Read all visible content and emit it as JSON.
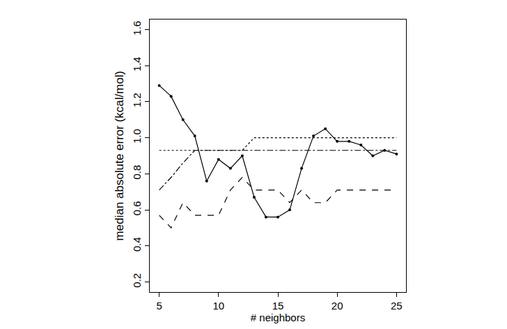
{
  "chart_data": {
    "type": "line",
    "x_label": "# neighbors",
    "y_label": "median absolute error (kcal/mol)",
    "x": [
      5,
      6,
      7,
      8,
      9,
      10,
      11,
      12,
      13,
      14,
      15,
      16,
      17,
      18,
      19,
      20,
      21,
      22,
      23,
      24,
      25
    ],
    "series": [
      {
        "color": "#000000",
        "line_style": "solid",
        "marker": "circle",
        "values": [
          1.29,
          1.23,
          1.1,
          1.01,
          0.76,
          0.88,
          0.83,
          0.9,
          0.67,
          0.56,
          0.56,
          0.6,
          0.83,
          1.01,
          1.05,
          0.98,
          0.98,
          0.96,
          0.9,
          0.93,
          0.91
        ]
      },
      {
        "color": "#000000",
        "line_style": "dot",
        "marker": "none",
        "values": [
          0.93,
          0.93,
          0.93,
          0.93,
          0.93,
          0.93,
          0.93,
          0.93,
          1.0,
          1.0,
          1.0,
          1.0,
          1.0,
          1.0,
          1.0,
          1.0,
          1.0,
          1.0,
          1.0,
          1.0,
          1.0
        ]
      },
      {
        "color": "#000000",
        "line_style": "dashdot",
        "marker": "none",
        "values": [
          0.71,
          0.78,
          0.86,
          0.93,
          0.93,
          0.93,
          0.93,
          0.93,
          0.93,
          0.93,
          0.93,
          0.93,
          0.93,
          0.93,
          0.93,
          0.93,
          0.93,
          0.93,
          0.93,
          0.93,
          0.93
        ]
      },
      {
        "color": "#000000",
        "line_style": "dash",
        "marker": "none",
        "values": [
          0.57,
          0.5,
          0.64,
          0.57,
          0.57,
          0.57,
          0.71,
          0.78,
          0.71,
          0.71,
          0.71,
          0.64,
          0.71,
          0.64,
          0.64,
          0.71,
          0.71,
          0.71,
          0.71,
          0.71,
          0.71
        ]
      }
    ],
    "xlim": [
      4.2,
      25.8
    ],
    "ylim": [
      0.144,
      1.656
    ],
    "xticks": [
      5,
      10,
      15,
      20,
      25
    ],
    "yticks": [
      0.2,
      0.4,
      0.6,
      0.8,
      {
        "value": 1,
        "label": "1.0"
      },
      1.2,
      1.4,
      1.6
    ],
    "grid": false
  }
}
